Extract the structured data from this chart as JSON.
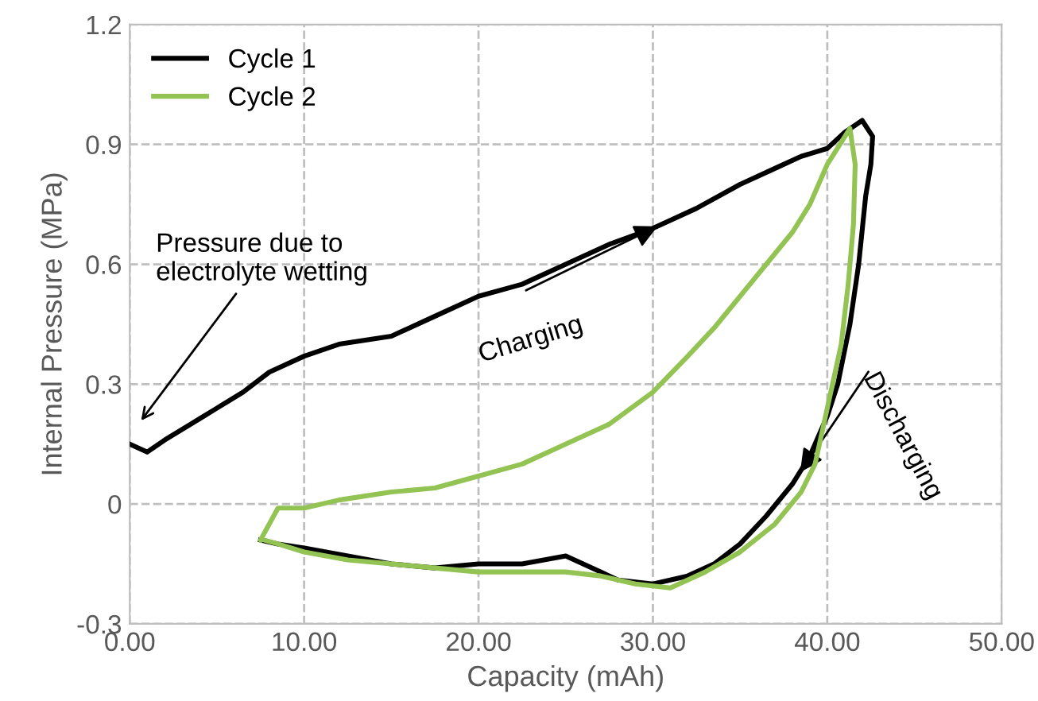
{
  "chart_data": {
    "type": "line",
    "xlabel": "Capacity (mAh)",
    "ylabel": "Internal Pressure (MPa)",
    "xlim": [
      0,
      50
    ],
    "ylim": [
      -0.3,
      1.2
    ],
    "xticks": [
      {
        "value": 0,
        "label": "0.00"
      },
      {
        "value": 10,
        "label": "10.00"
      },
      {
        "value": 20,
        "label": "20.00"
      },
      {
        "value": 30,
        "label": "30.00"
      },
      {
        "value": 40,
        "label": "40.00"
      },
      {
        "value": 50,
        "label": "50.00"
      }
    ],
    "yticks": [
      {
        "value": -0.3,
        "label": "-0.3"
      },
      0,
      0.3,
      0.6,
      0.9,
      1.2
    ],
    "grid": true,
    "legend": "top left",
    "marker": "none",
    "line_style": "solid",
    "series": [
      {
        "name": "Cycle 1",
        "color": "#000000",
        "x": [
          0,
          1,
          2,
          3.5,
          5,
          6.5,
          8,
          10,
          12,
          15,
          17.5,
          20,
          22.5,
          25,
          27.5,
          30,
          32.5,
          35,
          37,
          38.5,
          40,
          41,
          42,
          42.6,
          42.5,
          42.2,
          41.8,
          41.3,
          40.6,
          40,
          39,
          38,
          36.5,
          35,
          33.5,
          32,
          30,
          28,
          25,
          22.5,
          20,
          17.5,
          15,
          12.5,
          10,
          8.5,
          7.5
        ],
        "values": [
          0.15,
          0.13,
          0.16,
          0.2,
          0.24,
          0.28,
          0.33,
          0.37,
          0.4,
          0.42,
          0.47,
          0.52,
          0.55,
          0.6,
          0.65,
          0.69,
          0.74,
          0.8,
          0.84,
          0.87,
          0.89,
          0.93,
          0.96,
          0.92,
          0.85,
          0.77,
          0.6,
          0.45,
          0.3,
          0.22,
          0.12,
          0.05,
          -0.03,
          -0.1,
          -0.15,
          -0.18,
          -0.2,
          -0.19,
          -0.13,
          -0.15,
          -0.15,
          -0.16,
          -0.15,
          -0.13,
          -0.11,
          -0.1,
          -0.09
        ]
      },
      {
        "name": "Cycle 2",
        "color": "#92c353",
        "x": [
          7.5,
          8.5,
          10,
          12,
          15,
          17.5,
          20,
          22.5,
          25,
          27.5,
          30,
          32,
          33.5,
          35,
          36.5,
          38,
          39,
          40,
          41.3,
          41.6,
          41.5,
          41.2,
          40.8,
          40.3,
          39.8,
          39.3,
          38.5,
          37,
          35,
          33,
          31,
          29,
          27,
          25,
          22.5,
          20,
          17.5,
          15,
          12.5,
          10,
          8.5,
          7.7
        ],
        "values": [
          -0.09,
          -0.01,
          -0.01,
          0.01,
          0.03,
          0.04,
          0.07,
          0.1,
          0.15,
          0.2,
          0.28,
          0.37,
          0.44,
          0.52,
          0.6,
          0.68,
          0.75,
          0.85,
          0.94,
          0.85,
          0.7,
          0.55,
          0.4,
          0.3,
          0.2,
          0.1,
          0.03,
          -0.05,
          -0.12,
          -0.17,
          -0.21,
          -0.2,
          -0.18,
          -0.17,
          -0.17,
          -0.17,
          -0.16,
          -0.15,
          -0.14,
          -0.12,
          -0.1,
          -0.09
        ]
      }
    ],
    "annotations": [
      "Pressure due to\nelectrolyte wetting",
      {
        "text": "Charging",
        "x": 30.5,
        "y": 0.7
      },
      {
        "text": "Discharging",
        "x": 38.3,
        "y": 0.07
      }
    ]
  }
}
